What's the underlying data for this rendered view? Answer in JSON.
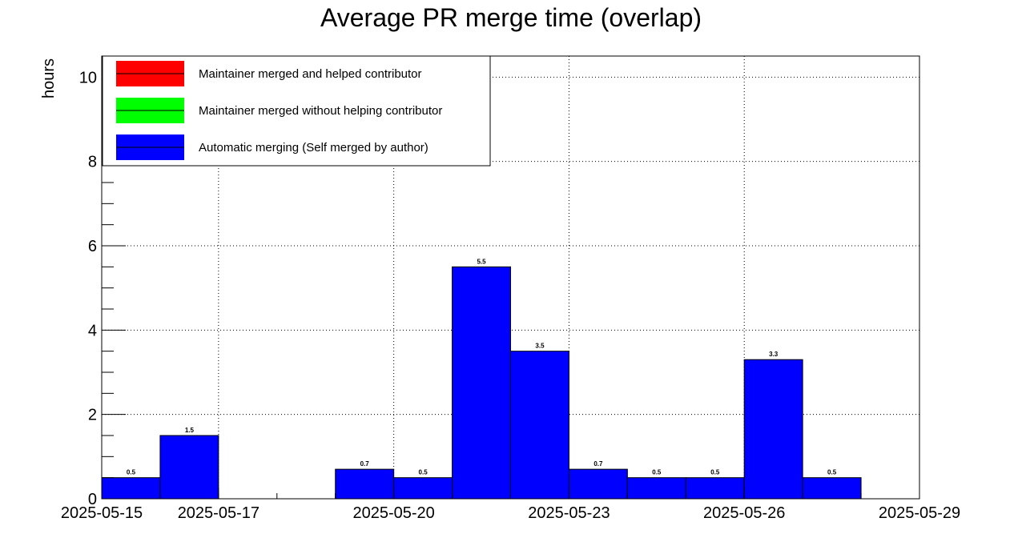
{
  "chart_data": {
    "type": "bar",
    "title": "Average PR merge time (overlap)",
    "ylabel": "hours",
    "xlabel": "",
    "ylim": [
      0,
      10.5
    ],
    "y_ticks": [
      0,
      2,
      4,
      6,
      8,
      10
    ],
    "x_axis": {
      "range": [
        "2025-05-15",
        "2025-05-29"
      ],
      "tick_labels": [
        "2025-05-15",
        "2025-05-17",
        "2025-05-20",
        "2025-05-23",
        "2025-05-26",
        "2025-05-29"
      ]
    },
    "grid": true,
    "legend": {
      "placement": "top-left",
      "entries": [
        {
          "label": "Maintainer merged and helped contributor",
          "color": "#ff0000"
        },
        {
          "label": "Maintainer merged without helping contributor",
          "color": "#00ff00"
        },
        {
          "label": "Automatic merging (Self merged by author)",
          "color": "#0000ff"
        }
      ]
    },
    "series": [
      {
        "name": "Automatic merging (Self merged by author)",
        "color": "#0000ff",
        "bins": [
          {
            "start": "2025-05-15",
            "end": "2025-05-16",
            "value": 0.5,
            "label": "0.5"
          },
          {
            "start": "2025-05-16",
            "end": "2025-05-17",
            "value": 1.5,
            "label": "1.5"
          },
          {
            "start": "2025-05-19",
            "end": "2025-05-20",
            "value": 0.7,
            "label": "0.7"
          },
          {
            "start": "2025-05-20",
            "end": "2025-05-21",
            "value": 0.5,
            "label": "0.5"
          },
          {
            "start": "2025-05-21",
            "end": "2025-05-22",
            "value": 5.5,
            "label": "5.5"
          },
          {
            "start": "2025-05-22",
            "end": "2025-05-23",
            "value": 3.5,
            "label": "3.5"
          },
          {
            "start": "2025-05-23",
            "end": "2025-05-24",
            "value": 0.7,
            "label": "0.7"
          },
          {
            "start": "2025-05-24",
            "end": "2025-05-25",
            "value": 0.5,
            "label": "0.5"
          },
          {
            "start": "2025-05-25",
            "end": "2025-05-26",
            "value": 0.5,
            "label": "0.5"
          },
          {
            "start": "2025-05-26",
            "end": "2025-05-27",
            "value": 3.3,
            "label": "3.3"
          },
          {
            "start": "2025-05-27",
            "end": "2025-05-28",
            "value": 0.5,
            "label": "0.5"
          }
        ]
      }
    ]
  }
}
